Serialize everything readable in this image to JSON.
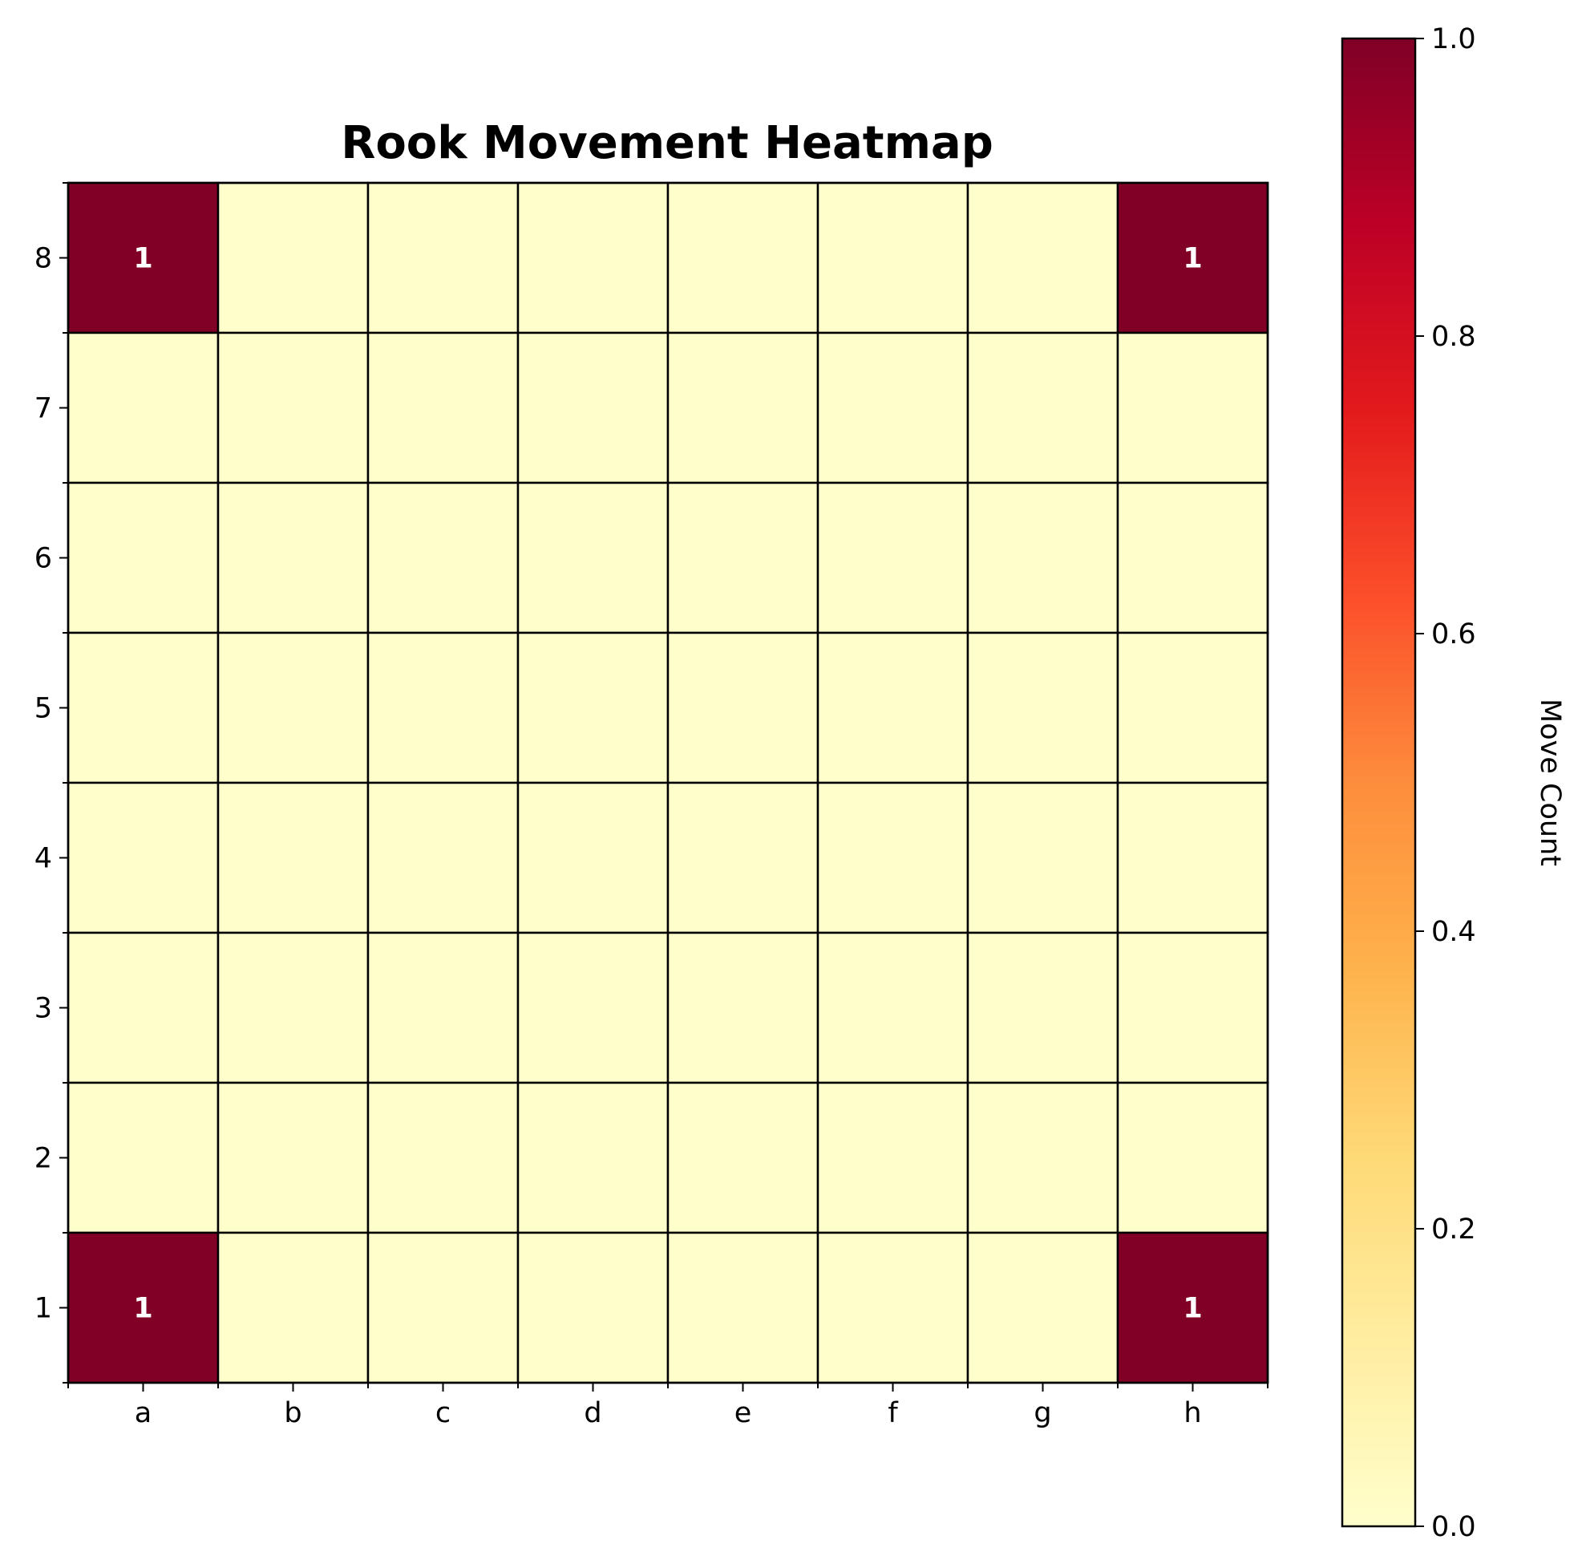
{
  "chart_data": {
    "type": "heatmap",
    "title": "Rook Movement Heatmap",
    "x_tick_labels": [
      "a",
      "b",
      "c",
      "d",
      "e",
      "f",
      "g",
      "h"
    ],
    "y_tick_labels": [
      "8",
      "7",
      "6",
      "5",
      "4",
      "3",
      "2",
      "1"
    ],
    "values": [
      [
        1,
        0,
        0,
        0,
        0,
        0,
        0,
        1
      ],
      [
        0,
        0,
        0,
        0,
        0,
        0,
        0,
        0
      ],
      [
        0,
        0,
        0,
        0,
        0,
        0,
        0,
        0
      ],
      [
        0,
        0,
        0,
        0,
        0,
        0,
        0,
        0
      ],
      [
        0,
        0,
        0,
        0,
        0,
        0,
        0,
        0
      ],
      [
        0,
        0,
        0,
        0,
        0,
        0,
        0,
        0
      ],
      [
        0,
        0,
        0,
        0,
        0,
        0,
        0,
        0
      ],
      [
        1,
        0,
        0,
        0,
        0,
        0,
        0,
        1
      ]
    ],
    "annotate_nonzero": true,
    "colormap": "YlOrRd",
    "colormap_stops": [
      "#ffffcc",
      "#ffeda0",
      "#fed976",
      "#feb24c",
      "#fd8d3c",
      "#fc4e2a",
      "#e31a1c",
      "#bd0026",
      "#800026"
    ],
    "colorbar": {
      "label": "Move Count",
      "range": [
        0.0,
        1.0
      ],
      "tick_labels": [
        "0.0",
        "0.2",
        "0.4",
        "0.6",
        "0.8",
        "1.0"
      ]
    },
    "grid_color": "#000000"
  }
}
